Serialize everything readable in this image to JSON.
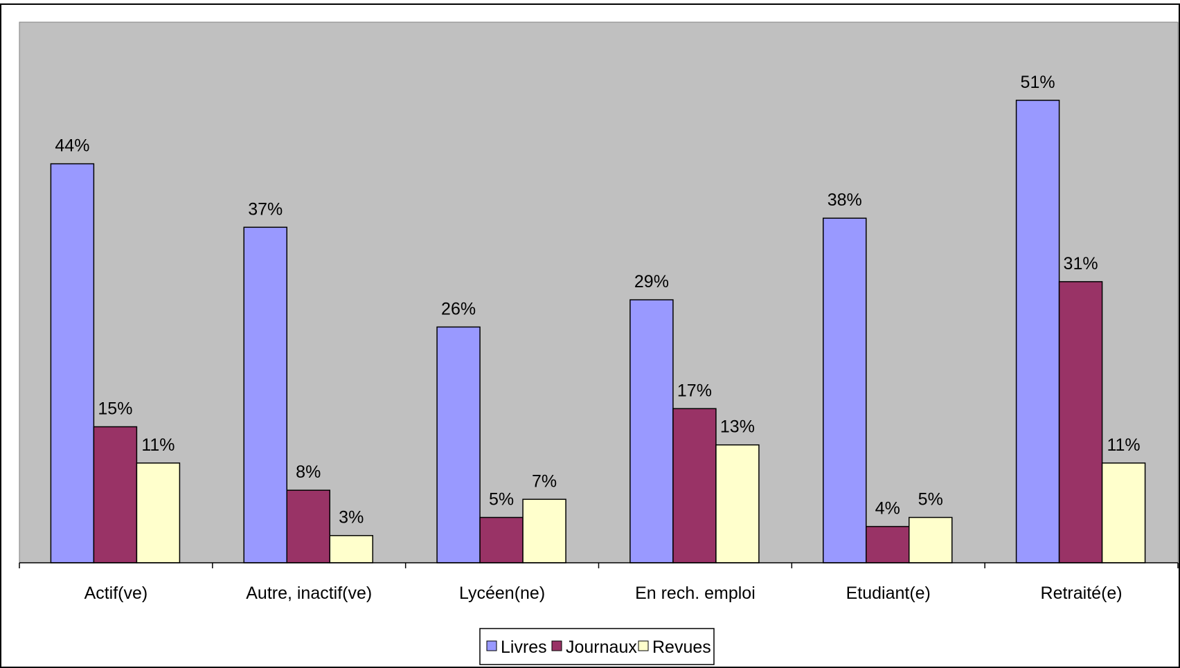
{
  "chart_data": {
    "type": "bar",
    "categories": [
      "Actif(ve)",
      "Autre, inactif(ve)",
      "Lycéen(ne)",
      "En rech. emploi",
      "Etudiant(e)",
      "Retraité(e)"
    ],
    "series": [
      {
        "name": "Livres",
        "values": [
          44,
          37,
          26,
          29,
          38,
          51
        ],
        "labels": [
          "44%",
          "37%",
          "26%",
          "29%",
          "38%",
          "51%"
        ],
        "color": "#9999ff"
      },
      {
        "name": "Journaux",
        "values": [
          15,
          8,
          5,
          17,
          4,
          31
        ],
        "labels": [
          "15%",
          "8%",
          "5%",
          "17%",
          "4%",
          "31%"
        ],
        "color": "#993366"
      },
      {
        "name": "Revues",
        "values": [
          11,
          3,
          7,
          13,
          5,
          11
        ],
        "labels": [
          "11%",
          "3%",
          "7%",
          "13%",
          "5%",
          "11%"
        ],
        "color": "#ffffcc"
      }
    ],
    "ylim": [
      0,
      60
    ],
    "grid": false,
    "legend_position": "bottom-center",
    "plot_background": "#c0c0c0",
    "title": "",
    "xlabel": "",
    "ylabel": ""
  }
}
